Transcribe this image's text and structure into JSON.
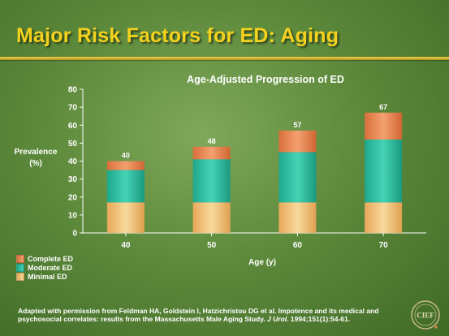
{
  "slide": {
    "title": "Major Risk Factors for ED: Aging"
  },
  "footnote": {
    "text_before": "Adapted with permission from Feldman HA, Goldstein I, Hatzichristou DG et al. Impotence and its medical and psychosocial correlates: results from the Massachusetts Male Aging Study. ",
    "journal": "J Urol.",
    "text_after": " 1994;151(1):54-61."
  },
  "logo": {
    "text": "CIEF"
  },
  "colors": {
    "complete": "#e8864e",
    "moderate": "#2fbfa0",
    "minimal": "#f0c37a",
    "title": "#f5d21e"
  },
  "chart_data": {
    "type": "bar",
    "stacked": true,
    "title": "Age-Adjusted Progression of ED",
    "xlabel": "Age (y)",
    "ylabel": "Prevalence (%)",
    "categories": [
      "40",
      "50",
      "60",
      "70"
    ],
    "ylim": [
      0,
      80
    ],
    "yticks": [
      0,
      10,
      20,
      30,
      40,
      50,
      60,
      70,
      80
    ],
    "series": [
      {
        "name": "Minimal ED",
        "values": [
          17,
          17,
          17,
          17
        ]
      },
      {
        "name": "Moderate ED",
        "values": [
          18,
          24,
          28,
          35
        ]
      },
      {
        "name": "Complete ED",
        "values": [
          5,
          7,
          12,
          15
        ]
      }
    ],
    "totals": [
      40,
      48,
      57,
      67
    ],
    "legend_position": "bottom-left",
    "grid": false
  }
}
